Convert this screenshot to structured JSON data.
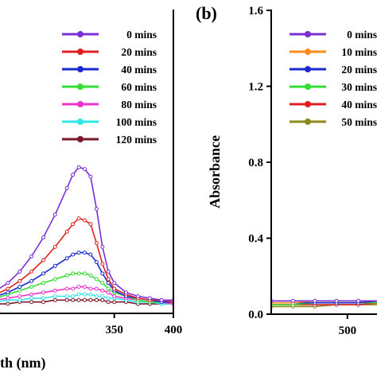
{
  "chart_data": [
    {
      "panel_label": "",
      "type": "line",
      "xlabel": "th (nm)",
      "ylabel": "",
      "x_ticks": [
        350,
        400
      ],
      "x": [
        250,
        260,
        270,
        280,
        290,
        300,
        310,
        315,
        320,
        325,
        330,
        335,
        340,
        345,
        350,
        360,
        370,
        380,
        390,
        400
      ],
      "series": [
        {
          "name": "0 mins",
          "color": "#7b2fd6",
          "values": [
            0.12,
            0.16,
            0.22,
            0.3,
            0.4,
            0.52,
            0.66,
            0.73,
            0.77,
            0.76,
            0.72,
            0.55,
            0.35,
            0.22,
            0.16,
            0.11,
            0.09,
            0.08,
            0.07,
            0.07
          ]
        },
        {
          "name": "20 mins",
          "color": "#e02020",
          "values": [
            0.1,
            0.13,
            0.17,
            0.22,
            0.28,
            0.35,
            0.43,
            0.47,
            0.5,
            0.49,
            0.47,
            0.37,
            0.26,
            0.18,
            0.13,
            0.1,
            0.08,
            0.07,
            0.07,
            0.06
          ]
        },
        {
          "name": "40 mins",
          "color": "#1a2ad0",
          "values": [
            0.09,
            0.11,
            0.14,
            0.17,
            0.21,
            0.25,
            0.29,
            0.31,
            0.32,
            0.32,
            0.31,
            0.27,
            0.21,
            0.16,
            0.12,
            0.09,
            0.08,
            0.07,
            0.06,
            0.06
          ]
        },
        {
          "name": "60 mins",
          "color": "#33dd33",
          "values": [
            0.08,
            0.1,
            0.12,
            0.14,
            0.16,
            0.18,
            0.2,
            0.21,
            0.21,
            0.21,
            0.2,
            0.18,
            0.16,
            0.13,
            0.11,
            0.09,
            0.07,
            0.06,
            0.06,
            0.06
          ]
        },
        {
          "name": "80 mins",
          "color": "#ee33cc",
          "values": [
            0.07,
            0.08,
            0.09,
            0.1,
            0.11,
            0.12,
            0.13,
            0.13,
            0.14,
            0.14,
            0.13,
            0.13,
            0.12,
            0.11,
            0.09,
            0.08,
            0.07,
            0.06,
            0.06,
            0.05
          ]
        },
        {
          "name": "100 mins",
          "color": "#33e6e6",
          "values": [
            0.06,
            0.07,
            0.07,
            0.08,
            0.08,
            0.09,
            0.09,
            0.09,
            0.1,
            0.1,
            0.1,
            0.09,
            0.09,
            0.08,
            0.08,
            0.07,
            0.06,
            0.06,
            0.05,
            0.05
          ]
        },
        {
          "name": "120 mins",
          "color": "#7a1a2a",
          "values": [
            0.05,
            0.05,
            0.06,
            0.06,
            0.06,
            0.07,
            0.07,
            0.07,
            0.07,
            0.07,
            0.07,
            0.07,
            0.07,
            0.06,
            0.06,
            0.06,
            0.05,
            0.05,
            0.05,
            0.05
          ]
        }
      ],
      "xlim": [
        250,
        400
      ],
      "ylim": [
        0,
        1.6
      ],
      "legend": "top-right"
    },
    {
      "panel_label": "(b)",
      "type": "line",
      "xlabel": "",
      "ylabel": "Absorbance",
      "x_ticks": [
        500
      ],
      "y_ticks": [
        "0.0",
        "0.4",
        "0.8",
        "1.2",
        "1.6"
      ],
      "x": [
        430,
        450,
        470,
        490,
        510,
        530,
        550,
        570,
        590
      ],
      "series": [
        {
          "name": "0 mins",
          "color": "#7b2fd6",
          "values": [
            0.07,
            0.07,
            0.07,
            0.07,
            0.07,
            0.07,
            0.08,
            0.09,
            0.12
          ]
        },
        {
          "name": "10 mins",
          "color": "#ff8c1a",
          "values": [
            0.06,
            0.06,
            0.07,
            0.07,
            0.07,
            0.07,
            0.08,
            0.1,
            0.14
          ]
        },
        {
          "name": "20 mins",
          "color": "#1a2ad0",
          "values": [
            0.06,
            0.06,
            0.06,
            0.06,
            0.06,
            0.07,
            0.08,
            0.09,
            0.13
          ]
        },
        {
          "name": "30 mins",
          "color": "#33dd33",
          "values": [
            0.05,
            0.05,
            0.06,
            0.06,
            0.06,
            0.06,
            0.07,
            0.08,
            0.1
          ]
        },
        {
          "name": "40 mins",
          "color": "#e02020",
          "values": [
            0.05,
            0.05,
            0.05,
            0.05,
            0.05,
            0.06,
            0.06,
            0.07,
            0.09
          ]
        },
        {
          "name": "50 mins",
          "color": "#8a8a1a",
          "values": [
            0.04,
            0.04,
            0.04,
            0.05,
            0.05,
            0.05,
            0.05,
            0.06,
            0.08
          ]
        }
      ],
      "xlim": [
        430,
        590
      ],
      "ylim": [
        0,
        1.6
      ],
      "legend": "top-right"
    }
  ]
}
